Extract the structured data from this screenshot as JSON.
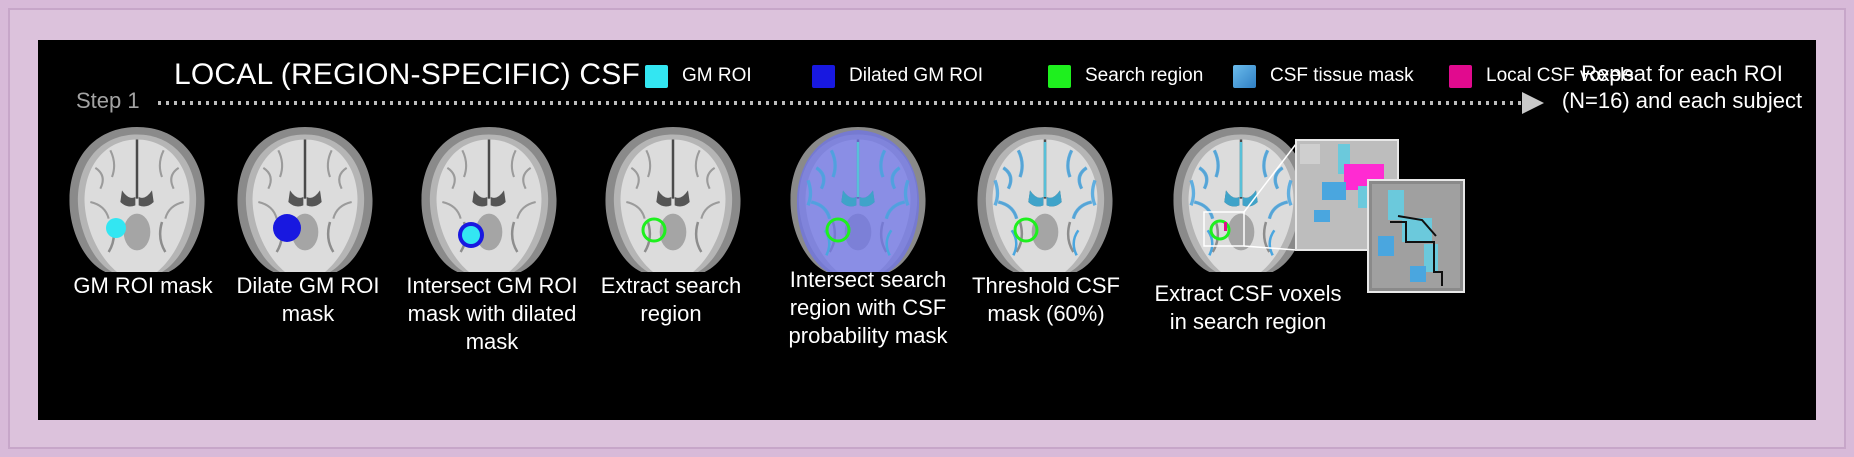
{
  "title": "LOCAL (REGION-SPECIFIC) CSF",
  "legend": [
    {
      "label": "GM ROI",
      "color": "#33e6f2"
    },
    {
      "label": "Dilated GM ROI",
      "color": "#1818e0"
    },
    {
      "label": "Search region",
      "color": "#1ef01e"
    },
    {
      "label": "CSF tissue mask",
      "color": "#4aa6df"
    },
    {
      "label": "Local CSF voxels",
      "color": "#e10a8e"
    }
  ],
  "step_label": "Step 1",
  "repeat_note": "Repeat for each ROI (N=16) and each subject",
  "steps": [
    {
      "caption": "GM ROI mask"
    },
    {
      "caption": "Dilate GM ROI mask"
    },
    {
      "caption": "Intersect GM ROI mask with dilated mask"
    },
    {
      "caption": "Extract search region"
    },
    {
      "caption": "Intersect search region with CSF probability mask"
    },
    {
      "caption": "Threshold CSF mask (60%)"
    },
    {
      "caption": "Extract CSF voxels in search region"
    }
  ]
}
